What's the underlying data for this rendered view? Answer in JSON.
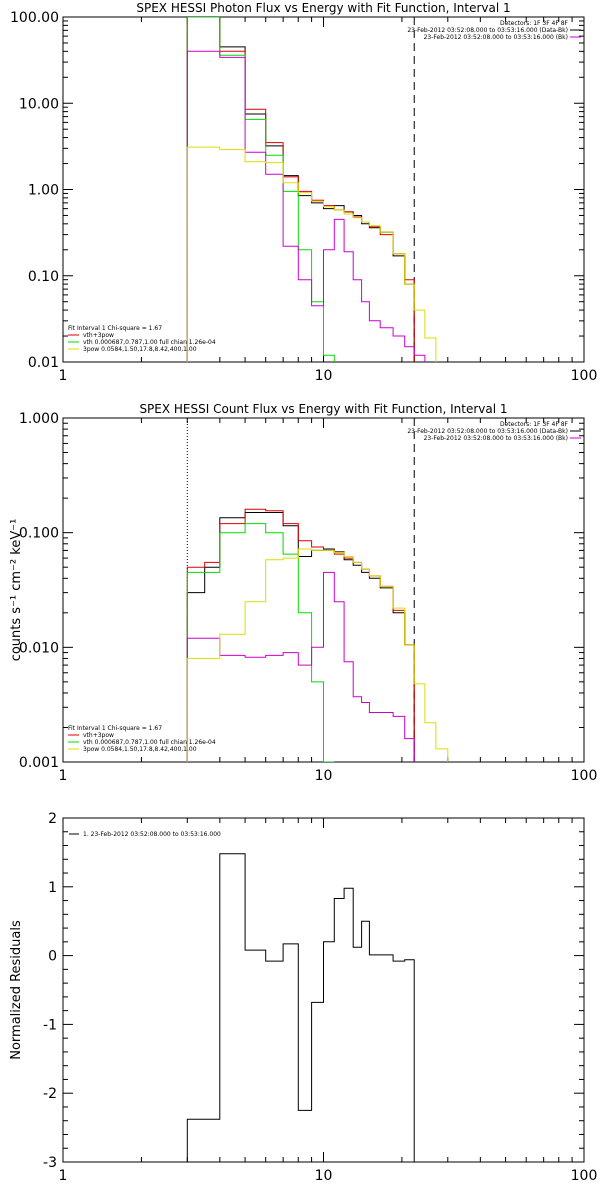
{
  "chart_data": [
    {
      "type": "line",
      "title": "SPEX HESSI Photon Flux vs Energy with Fit Function, Interval 1",
      "xscale": "log",
      "yscale": "log",
      "xlim": [
        1,
        100
      ],
      "ylim": [
        0.01,
        100
      ],
      "x_ticks": [
        "1",
        "10",
        "100"
      ],
      "y_ticks": [
        "0.01",
        "0.10",
        "1.00",
        "10.00",
        "100.00"
      ],
      "vlines": [
        {
          "x": 3.0,
          "style": "dotted"
        },
        {
          "x": 22.3,
          "style": "dashed"
        }
      ],
      "header": [
        "Detectors: 1F 3F 4F 8F",
        "23-Feb-2012 03:52:08.000 to 03:53:16.000 (Data-Bk)",
        "23-Feb-2012 03:52:08.000 to 03:53:16.000 (Bk)"
      ],
      "header_colors": [
        "",
        "#000000",
        "#cc00cc"
      ],
      "legend_title": "Fit Interval 1     Chi-square = 1.67",
      "legend": [
        {
          "label": "vth+3pow",
          "color": "#dd0000"
        },
        {
          "label": "vth 0.000687,0.787,1.00  full chian 1.26e-04",
          "color": "#00dd00"
        },
        {
          "label": "3pow 0.0584,1.50,17.8,8.42,400,1.00",
          "color": "#dddd00"
        }
      ],
      "edges": [
        3.0,
        4.0,
        5.0,
        6.0,
        7.0,
        8.0,
        9.0,
        10.0,
        11.0,
        12.0,
        13.0,
        14.0,
        15.0,
        16.5,
        18.5,
        20.5,
        22.3,
        24.5,
        27.0,
        30.0
      ],
      "series": [
        {
          "color": "#000000",
          "values": [
            100,
            45,
            7.5,
            3.2,
            1.45,
            0.85,
            0.7,
            0.6,
            0.65,
            0.55,
            0.5,
            0.4,
            0.36,
            0.32,
            0.17,
            0.08,
            null,
            null,
            null
          ]
        },
        {
          "color": "#dd0000",
          "values": [
            100,
            40,
            8.5,
            3.5,
            1.4,
            0.95,
            0.75,
            0.65,
            0.58,
            0.55,
            0.48,
            0.42,
            0.37,
            0.3,
            0.18,
            0.09,
            null,
            null,
            null
          ]
        },
        {
          "color": "#00dd00",
          "values": [
            100,
            36,
            6.5,
            2.5,
            0.95,
            0.2,
            0.05,
            0.012,
            null,
            null,
            null,
            null,
            null,
            null,
            null,
            null,
            null,
            null,
            null
          ]
        },
        {
          "color": "#cc00cc",
          "values": [
            40,
            34,
            2.7,
            1.5,
            0.22,
            0.09,
            0.045,
            0.2,
            0.45,
            0.19,
            0.09,
            0.05,
            0.03,
            0.025,
            0.02,
            0.015,
            0.012,
            null,
            null
          ]
        },
        {
          "color": "#dddd00",
          "values": [
            3.1,
            2.9,
            2.1,
            2.05,
            1.2,
            0.92,
            0.73,
            0.63,
            0.58,
            0.52,
            0.47,
            0.42,
            0.38,
            0.32,
            0.18,
            0.08,
            0.04,
            0.019,
            null
          ]
        }
      ]
    },
    {
      "type": "line",
      "title": "SPEX HESSI Count Flux vs Energy with Fit Function, Interval 1",
      "xscale": "log",
      "yscale": "log",
      "xlim": [
        1,
        100
      ],
      "ylim": [
        0.001,
        1
      ],
      "x_ticks": [
        "1",
        "10",
        "100"
      ],
      "y_ticks": [
        "0.001",
        "0.010",
        "0.100",
        "1.000"
      ],
      "ylabel": "counts s⁻¹ cm⁻² keV⁻¹",
      "vlines": [
        {
          "x": 3.0,
          "style": "dotted"
        },
        {
          "x": 22.3,
          "style": "dashed"
        }
      ],
      "header": [
        "Detectors: 1F 3F 4F 8F",
        "23-Feb-2012 03:52:08.000 to 03:53:16.000 (Data-Bk)",
        "23-Feb-2012 03:52:08.000 to 03:53:16.000 (Bk)"
      ],
      "header_colors": [
        "",
        "#000000",
        "#cc00cc"
      ],
      "legend_title": "Fit Interval 1     Chi-square = 1.67",
      "legend": [
        {
          "label": "vth+3pow",
          "color": "#dd0000"
        },
        {
          "label": "vth 0.000687,0.787,1.00  full chian 1.26e-04",
          "color": "#00dd00"
        },
        {
          "label": "3pow 0.0584,1.50,17.8,8.42,400,1.00",
          "color": "#dddd00"
        }
      ],
      "edges": [
        3.0,
        3.5,
        4.0,
        5.0,
        6.0,
        7.0,
        8.0,
        9.0,
        10.0,
        11.0,
        12.0,
        13.0,
        14.0,
        15.0,
        16.5,
        18.5,
        20.5,
        22.3,
        24.5,
        27.0,
        30.0
      ],
      "series": [
        {
          "color": "#000000",
          "values": [
            0.03,
            0.05,
            0.135,
            0.15,
            0.15,
            0.115,
            0.062,
            0.07,
            0.072,
            0.068,
            0.058,
            0.052,
            0.045,
            0.04,
            0.033,
            0.02,
            0.0105,
            null,
            null,
            null
          ]
        },
        {
          "color": "#dd0000",
          "values": [
            0.05,
            0.055,
            0.12,
            0.16,
            0.155,
            0.12,
            0.085,
            0.075,
            0.07,
            0.065,
            0.06,
            0.055,
            0.048,
            0.042,
            0.034,
            0.021,
            0.0105,
            null,
            null,
            null
          ]
        },
        {
          "color": "#00dd00",
          "values": [
            0.045,
            0.045,
            0.1,
            0.12,
            0.1,
            0.065,
            0.02,
            0.005,
            0.001,
            null,
            null,
            null,
            null,
            null,
            null,
            null,
            null,
            null,
            null,
            null
          ]
        },
        {
          "color": "#cc00cc",
          "values": [
            0.012,
            0.012,
            0.0085,
            0.0082,
            0.0085,
            0.009,
            0.007,
            0.01,
            0.045,
            0.025,
            0.0075,
            0.0037,
            0.0033,
            0.0027,
            0.0027,
            0.0025,
            0.0016,
            null,
            null,
            null
          ]
        },
        {
          "color": "#dddd00",
          "values": [
            0.008,
            0.008,
            0.013,
            0.025,
            0.058,
            0.06,
            0.072,
            0.07,
            0.07,
            0.067,
            0.062,
            0.055,
            0.048,
            0.042,
            0.034,
            0.022,
            0.0105,
            0.0048,
            0.0022,
            0.0013
          ]
        }
      ]
    },
    {
      "type": "line",
      "title": "",
      "xscale": "log",
      "yscale": "linear",
      "xlim": [
        1,
        100
      ],
      "ylim": [
        -3,
        2
      ],
      "x_ticks": [
        "1",
        "10",
        "100"
      ],
      "y_ticks": [
        "-3",
        "-2",
        "-1",
        "0",
        "1",
        "2"
      ],
      "ylabel": "Normalized Residuals",
      "legend": [
        {
          "label": "1. 23-Feb-2012 03:52:08.000 to 03:53:16.000",
          "color": "#000000"
        }
      ],
      "edges": [
        3.0,
        4.0,
        5.0,
        6.0,
        7.0,
        8.0,
        9.0,
        10.0,
        11.0,
        12.0,
        13.0,
        14.0,
        15.0,
        16.5,
        18.5,
        20.5,
        22.3
      ],
      "series": [
        {
          "color": "#000000",
          "values": [
            -2.38,
            1.48,
            0.08,
            -0.08,
            0.17,
            -2.25,
            -0.68,
            0.2,
            0.83,
            0.98,
            0.12,
            0.5,
            0.01,
            0.01,
            -0.08,
            -0.06
          ]
        }
      ]
    }
  ]
}
